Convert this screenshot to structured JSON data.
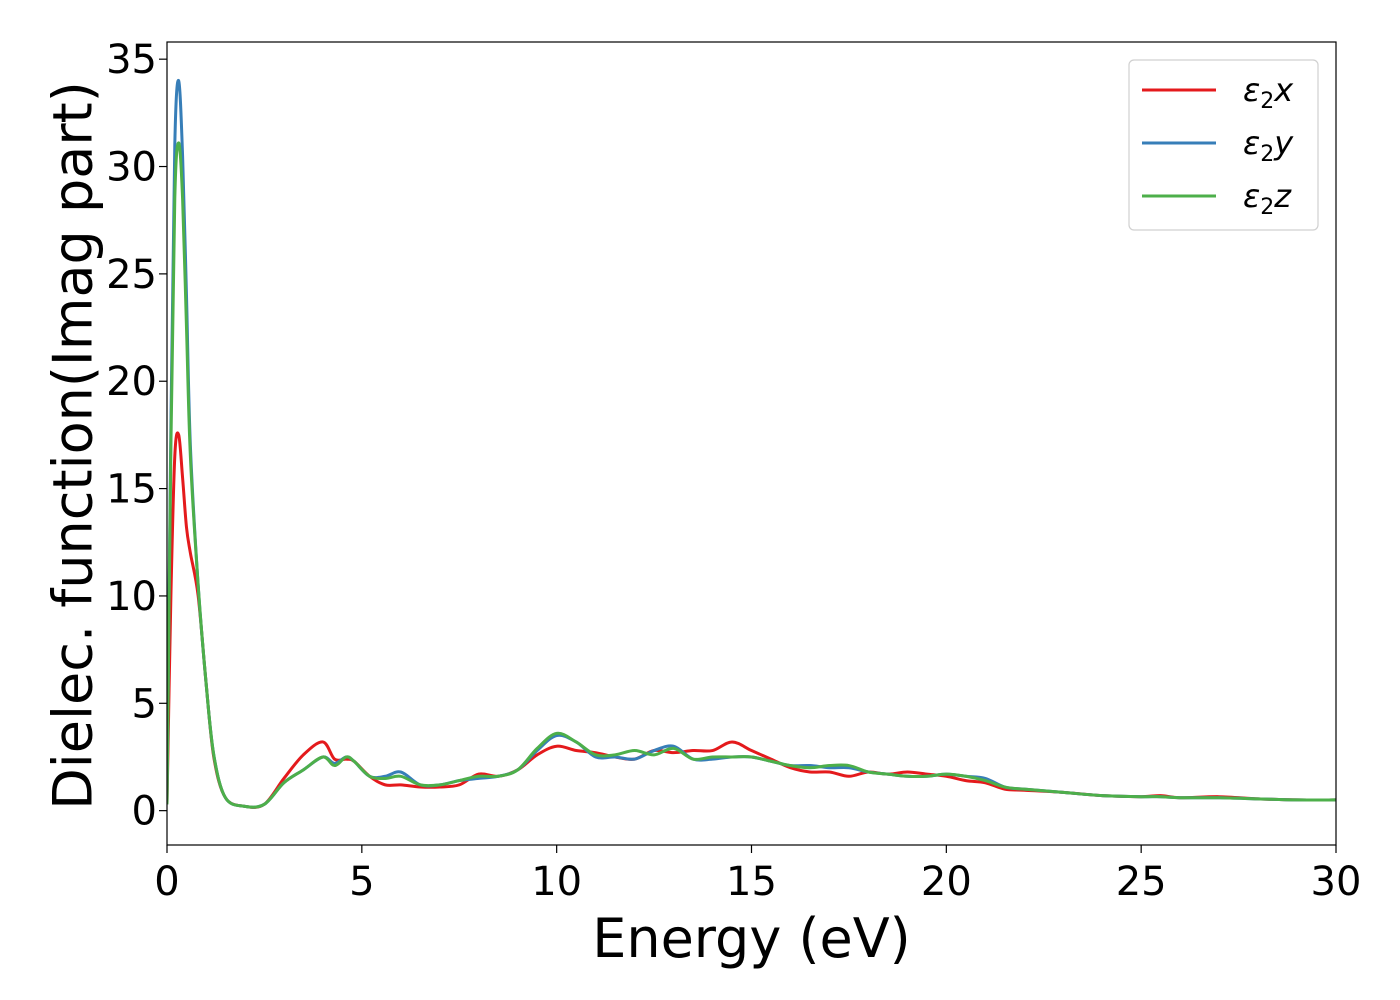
{
  "chart_data": {
    "type": "line",
    "xlabel": "Energy (eV)",
    "ylabel": "Dielec. function(Imag part)",
    "xlim": [
      0,
      30
    ],
    "ylim": [
      -1.6,
      35.8
    ],
    "xticks": [
      0,
      5,
      10,
      15,
      20,
      25,
      30
    ],
    "yticks": [
      0,
      5,
      10,
      15,
      20,
      25,
      30,
      35
    ],
    "grid": false,
    "legend_position": "top-right",
    "series": [
      {
        "name": "ε₂x",
        "legend_base": "ε",
        "legend_sub": "2",
        "legend_tail": "x",
        "color": "#e41a1c",
        "x": [
          0,
          0.1,
          0.2,
          0.3,
          0.4,
          0.5,
          0.6,
          0.8,
          1.0,
          1.2,
          1.5,
          2.0,
          2.5,
          3.0,
          3.5,
          4.0,
          4.3,
          4.6,
          4.8,
          5.2,
          5.6,
          6.0,
          6.5,
          7.0,
          7.5,
          8.0,
          8.5,
          9.0,
          9.5,
          10.0,
          10.5,
          11.0,
          11.5,
          12.0,
          12.5,
          13.0,
          13.5,
          14.0,
          14.5,
          15.0,
          15.5,
          16.0,
          16.5,
          17.0,
          17.5,
          18.0,
          18.5,
          19.0,
          19.5,
          20.0,
          20.5,
          21.0,
          21.5,
          22.0,
          23.0,
          24.0,
          25.0,
          25.5,
          26.0,
          27.0,
          28.0,
          29.0,
          30.0
        ],
        "y": [
          0.3,
          10,
          16.5,
          17.5,
          15.5,
          13.2,
          12.0,
          10.0,
          6.0,
          2.5,
          0.6,
          0.2,
          0.3,
          1.5,
          2.6,
          3.2,
          2.4,
          2.4,
          2.3,
          1.6,
          1.2,
          1.2,
          1.1,
          1.1,
          1.2,
          1.7,
          1.6,
          1.9,
          2.6,
          3.0,
          2.8,
          2.7,
          2.5,
          2.4,
          2.8,
          2.7,
          2.8,
          2.8,
          3.2,
          2.8,
          2.4,
          2.0,
          1.8,
          1.8,
          1.6,
          1.8,
          1.7,
          1.8,
          1.7,
          1.6,
          1.4,
          1.3,
          1.0,
          0.95,
          0.85,
          0.7,
          0.65,
          0.7,
          0.6,
          0.65,
          0.55,
          0.5,
          0.5
        ]
      },
      {
        "name": "ε₂y",
        "legend_base": "ε",
        "legend_sub": "2",
        "legend_tail": "y",
        "color": "#377eb8",
        "x": [
          0,
          0.1,
          0.2,
          0.3,
          0.4,
          0.5,
          0.6,
          0.8,
          1.0,
          1.2,
          1.5,
          2.0,
          2.5,
          3.0,
          3.5,
          4.0,
          4.3,
          4.6,
          4.8,
          5.2,
          5.6,
          6.0,
          6.5,
          7.0,
          7.5,
          8.0,
          8.5,
          9.0,
          9.5,
          10.0,
          10.5,
          11.0,
          11.5,
          12.0,
          12.5,
          13.0,
          13.5,
          14.0,
          14.5,
          15.0,
          15.5,
          16.0,
          16.5,
          17.0,
          17.5,
          18.0,
          18.5,
          19.0,
          19.5,
          20.0,
          20.5,
          21.0,
          21.5,
          22.0,
          23.0,
          24.0,
          25.0,
          25.5,
          26.0,
          27.0,
          28.0,
          29.0,
          30.0
        ],
        "y": [
          0.3,
          18,
          31,
          34.0,
          30.5,
          24,
          17,
          10.5,
          6.0,
          2.6,
          0.6,
          0.2,
          0.3,
          1.3,
          1.9,
          2.5,
          2.2,
          2.5,
          2.3,
          1.6,
          1.6,
          1.8,
          1.2,
          1.2,
          1.4,
          1.5,
          1.6,
          1.9,
          2.8,
          3.5,
          3.2,
          2.5,
          2.5,
          2.4,
          2.8,
          3.0,
          2.4,
          2.4,
          2.5,
          2.5,
          2.3,
          2.1,
          2.1,
          2.0,
          2.0,
          1.8,
          1.7,
          1.6,
          1.6,
          1.7,
          1.6,
          1.5,
          1.1,
          1.0,
          0.85,
          0.7,
          0.65,
          0.65,
          0.6,
          0.6,
          0.55,
          0.5,
          0.5
        ]
      },
      {
        "name": "ε₂z",
        "legend_base": "ε",
        "legend_sub": "2",
        "legend_tail": "z",
        "color": "#4daf4a",
        "x": [
          0,
          0.1,
          0.2,
          0.3,
          0.4,
          0.5,
          0.6,
          0.8,
          1.0,
          1.2,
          1.5,
          2.0,
          2.5,
          3.0,
          3.5,
          4.0,
          4.3,
          4.6,
          4.8,
          5.2,
          5.6,
          6.0,
          6.5,
          7.0,
          7.5,
          8.0,
          8.5,
          9.0,
          9.5,
          10.0,
          10.5,
          11.0,
          11.5,
          12.0,
          12.5,
          13.0,
          13.5,
          14.0,
          14.5,
          15.0,
          15.5,
          16.0,
          16.5,
          17.0,
          17.5,
          18.0,
          18.5,
          19.0,
          19.5,
          20.0,
          20.5,
          21.0,
          21.5,
          22.0,
          23.0,
          24.0,
          25.0,
          25.5,
          26.0,
          27.0,
          28.0,
          29.0,
          30.0
        ],
        "y": [
          0.3,
          17,
          28.5,
          31.1,
          28.5,
          22.5,
          16.5,
          10.5,
          6.0,
          2.6,
          0.6,
          0.2,
          0.3,
          1.3,
          1.9,
          2.5,
          2.1,
          2.5,
          2.3,
          1.6,
          1.5,
          1.6,
          1.2,
          1.2,
          1.4,
          1.6,
          1.6,
          1.9,
          2.9,
          3.6,
          3.2,
          2.6,
          2.6,
          2.8,
          2.6,
          2.9,
          2.4,
          2.5,
          2.5,
          2.5,
          2.3,
          2.1,
          2.0,
          2.1,
          2.1,
          1.8,
          1.7,
          1.6,
          1.6,
          1.7,
          1.6,
          1.4,
          1.1,
          1.0,
          0.85,
          0.7,
          0.65,
          0.65,
          0.6,
          0.6,
          0.55,
          0.5,
          0.5
        ]
      }
    ]
  }
}
